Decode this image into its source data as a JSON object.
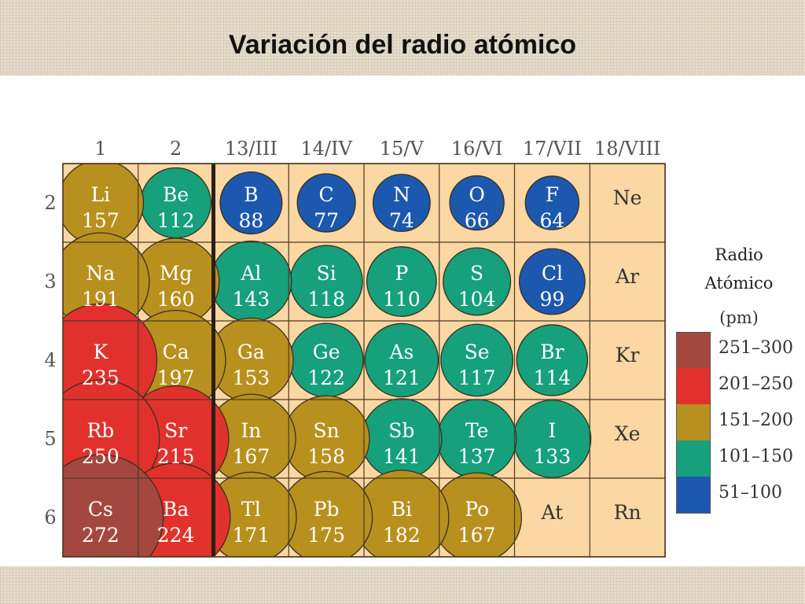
{
  "title": "Variación del radio atómico",
  "colors": {
    "r251_300": "#a4483f",
    "r201_250": "#e2312c",
    "r151_200": "#b8901e",
    "r101_150": "#16a07c",
    "r51_100": "#1c58ad",
    "cell_bg": "#fbd7a3",
    "grid": "#4b3a24"
  },
  "groups": [
    "1",
    "2",
    "13/III",
    "14/IV",
    "15/V",
    "16/VI",
    "17/VII",
    "18/VIII"
  ],
  "periods": [
    "2",
    "3",
    "4",
    "5",
    "6"
  ],
  "elements": [
    {
      "symbol": "Li",
      "radius": "157",
      "period": 2,
      "col": 1
    },
    {
      "symbol": "Be",
      "radius": "112",
      "period": 2,
      "col": 2
    },
    {
      "symbol": "B",
      "radius": "88",
      "period": 2,
      "col": 3
    },
    {
      "symbol": "C",
      "radius": "77",
      "period": 2,
      "col": 4
    },
    {
      "symbol": "N",
      "radius": "74",
      "period": 2,
      "col": 5
    },
    {
      "symbol": "O",
      "radius": "66",
      "period": 2,
      "col": 6
    },
    {
      "symbol": "F",
      "radius": "64",
      "period": 2,
      "col": 7
    },
    {
      "symbol": "Ne",
      "radius": "",
      "period": 2,
      "col": 8
    },
    {
      "symbol": "Na",
      "radius": "191",
      "period": 3,
      "col": 1
    },
    {
      "symbol": "Mg",
      "radius": "160",
      "period": 3,
      "col": 2
    },
    {
      "symbol": "Al",
      "radius": "143",
      "period": 3,
      "col": 3
    },
    {
      "symbol": "Si",
      "radius": "118",
      "period": 3,
      "col": 4
    },
    {
      "symbol": "P",
      "radius": "110",
      "period": 3,
      "col": 5
    },
    {
      "symbol": "S",
      "radius": "104",
      "period": 3,
      "col": 6
    },
    {
      "symbol": "Cl",
      "radius": "99",
      "period": 3,
      "col": 7
    },
    {
      "symbol": "Ar",
      "radius": "",
      "period": 3,
      "col": 8
    },
    {
      "symbol": "K",
      "radius": "235",
      "period": 4,
      "col": 1
    },
    {
      "symbol": "Ca",
      "radius": "197",
      "period": 4,
      "col": 2
    },
    {
      "symbol": "Ga",
      "radius": "153",
      "period": 4,
      "col": 3
    },
    {
      "symbol": "Ge",
      "radius": "122",
      "period": 4,
      "col": 4
    },
    {
      "symbol": "As",
      "radius": "121",
      "period": 4,
      "col": 5
    },
    {
      "symbol": "Se",
      "radius": "117",
      "period": 4,
      "col": 6
    },
    {
      "symbol": "Br",
      "radius": "114",
      "period": 4,
      "col": 7
    },
    {
      "symbol": "Kr",
      "radius": "",
      "period": 4,
      "col": 8
    },
    {
      "symbol": "Rb",
      "radius": "250",
      "period": 5,
      "col": 1
    },
    {
      "symbol": "Sr",
      "radius": "215",
      "period": 5,
      "col": 2
    },
    {
      "symbol": "In",
      "radius": "167",
      "period": 5,
      "col": 3
    },
    {
      "symbol": "Sn",
      "radius": "158",
      "period": 5,
      "col": 4
    },
    {
      "symbol": "Sb",
      "radius": "141",
      "period": 5,
      "col": 5
    },
    {
      "symbol": "Te",
      "radius": "137",
      "period": 5,
      "col": 6
    },
    {
      "symbol": "I",
      "radius": "133",
      "period": 5,
      "col": 7
    },
    {
      "symbol": "Xe",
      "radius": "",
      "period": 5,
      "col": 8
    },
    {
      "symbol": "Cs",
      "radius": "272",
      "period": 6,
      "col": 1
    },
    {
      "symbol": "Ba",
      "radius": "224",
      "period": 6,
      "col": 2
    },
    {
      "symbol": "Tl",
      "radius": "171",
      "period": 6,
      "col": 3
    },
    {
      "symbol": "Pb",
      "radius": "175",
      "period": 6,
      "col": 4
    },
    {
      "symbol": "Bi",
      "radius": "182",
      "period": 6,
      "col": 5
    },
    {
      "symbol": "Po",
      "radius": "167",
      "period": 6,
      "col": 6
    },
    {
      "symbol": "At",
      "radius": "",
      "period": 6,
      "col": 7
    },
    {
      "symbol": "Rn",
      "radius": "",
      "period": 6,
      "col": 8
    }
  ],
  "legend": {
    "title_line1": "Radio",
    "title_line2": "Atómico",
    "unit": "(pm)",
    "ranges": [
      {
        "label": "251–300",
        "color": "#a4483f",
        "min": 251,
        "max": 300
      },
      {
        "label": "201–250",
        "color": "#e2312c",
        "min": 201,
        "max": 250
      },
      {
        "label": "151–200",
        "color": "#b8901e",
        "min": 151,
        "max": 200
      },
      {
        "label": "101–150",
        "color": "#16a07c",
        "min": 101,
        "max": 150
      },
      {
        "label": "51–100",
        "color": "#1c58ad",
        "min": 51,
        "max": 100
      }
    ]
  }
}
